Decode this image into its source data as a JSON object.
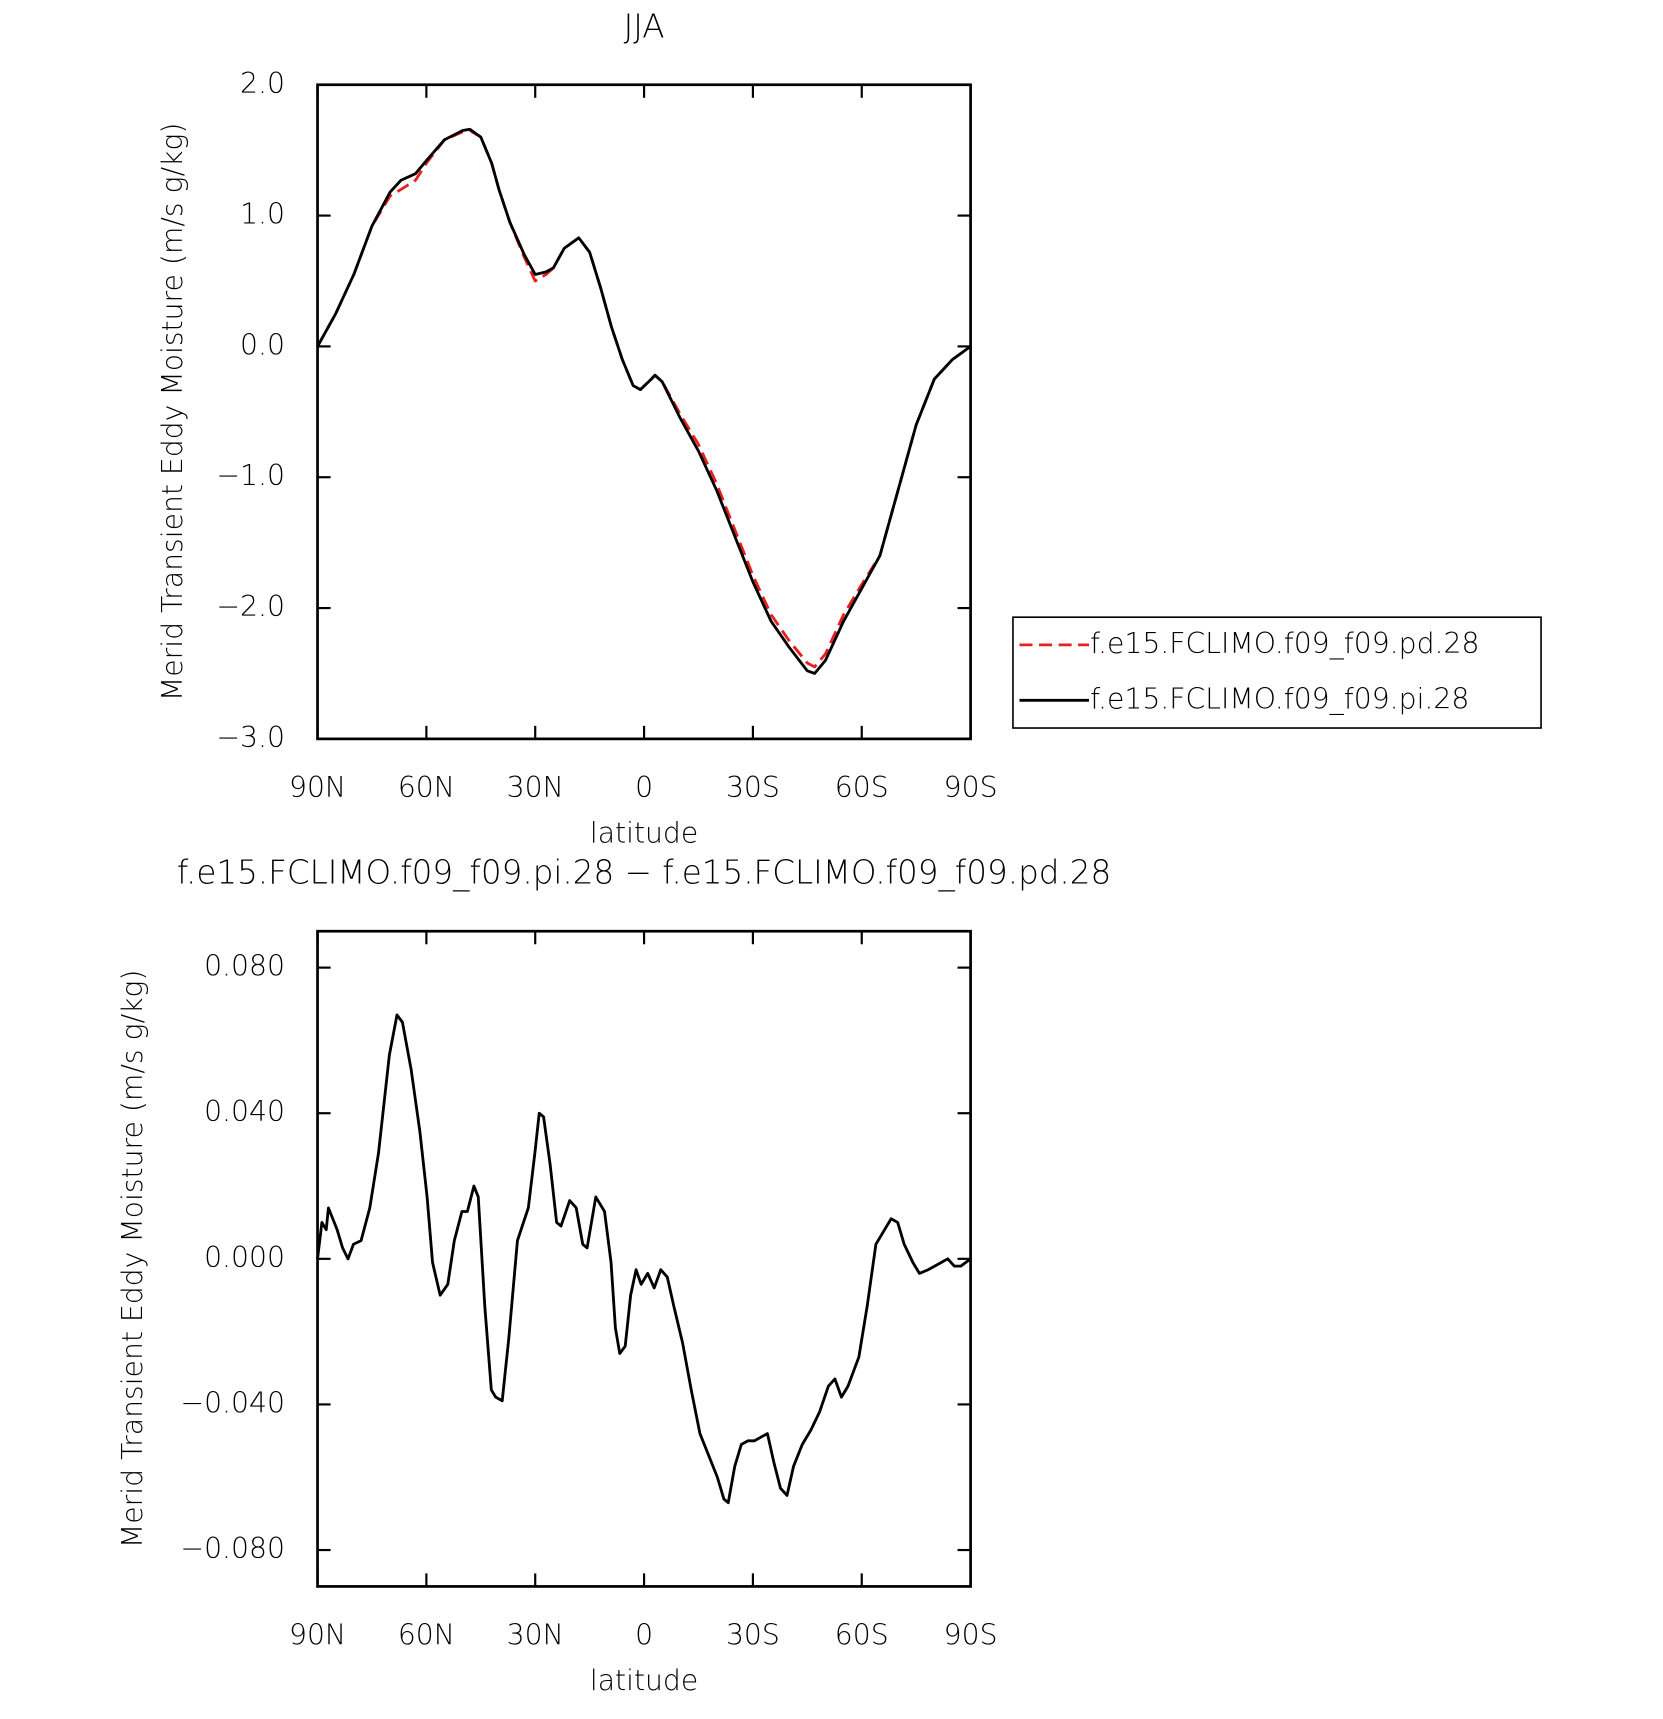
{
  "chart_data": [
    {
      "type": "line",
      "title": "JJA",
      "x_label": "latitude",
      "y_label": "Merid Transient Eddy Moisture (m/s g/kg)",
      "x": [
        90,
        85,
        80,
        75,
        70,
        67,
        63,
        60,
        55,
        50,
        48,
        45,
        42,
        40,
        37,
        33,
        30,
        27,
        25,
        22,
        18,
        15,
        12,
        9,
        6,
        3,
        1,
        -2,
        -3,
        -5,
        -10,
        -15,
        -20,
        -25,
        -30,
        -35,
        -40,
        -45,
        -47,
        -50,
        -55,
        -60,
        -65,
        -70,
        -75,
        -80,
        -85,
        -90
      ],
      "series": [
        {
          "name": "f.e15.FCLIMO.f09_f09.pd.28",
          "color": "#e8201c",
          "dash": true,
          "values": [
            0.0,
            0.25,
            0.55,
            0.92,
            1.15,
            1.2,
            1.27,
            1.4,
            1.58,
            1.64,
            1.65,
            1.6,
            1.4,
            1.2,
            0.95,
            0.68,
            0.5,
            0.55,
            0.6,
            0.75,
            0.83,
            0.72,
            0.45,
            0.15,
            -0.1,
            -0.3,
            -0.33,
            -0.25,
            -0.22,
            -0.27,
            -0.52,
            -0.75,
            -1.05,
            -1.4,
            -1.75,
            -2.05,
            -2.25,
            -2.42,
            -2.45,
            -2.35,
            -2.05,
            -1.82,
            -1.6,
            -1.1,
            -0.6,
            -0.25,
            -0.1,
            0.0
          ]
        },
        {
          "name": "f.e15.FCLIMO.f09_f09.pi.28",
          "color": "#000000",
          "dash": false,
          "values": [
            0.0,
            0.25,
            0.55,
            0.92,
            1.18,
            1.27,
            1.32,
            1.42,
            1.58,
            1.65,
            1.66,
            1.6,
            1.4,
            1.2,
            0.95,
            0.7,
            0.55,
            0.57,
            0.6,
            0.75,
            0.83,
            0.72,
            0.45,
            0.15,
            -0.1,
            -0.3,
            -0.33,
            -0.25,
            -0.22,
            -0.27,
            -0.55,
            -0.8,
            -1.1,
            -1.45,
            -1.8,
            -2.1,
            -2.3,
            -2.48,
            -2.5,
            -2.4,
            -2.1,
            -1.85,
            -1.6,
            -1.1,
            -0.6,
            -0.25,
            -0.1,
            0.0
          ]
        }
      ],
      "xlim": [
        90,
        -90
      ],
      "xticks": [
        {
          "value": 90,
          "label": "90N"
        },
        {
          "value": 60,
          "label": "60N"
        },
        {
          "value": 30,
          "label": "30N"
        },
        0,
        {
          "value": -30,
          "label": "30S"
        },
        {
          "value": -60,
          "label": "60S"
        },
        {
          "value": -90,
          "label": "90S"
        }
      ],
      "ylim": [
        -3,
        2
      ],
      "yticks": [
        {
          "value": -3,
          "label": "−3.0"
        },
        {
          "value": -2,
          "label": "−2.0"
        },
        {
          "value": -1,
          "label": "−1.0"
        },
        {
          "value": 0,
          "label": "0.0"
        },
        {
          "value": 1,
          "label": "1.0"
        },
        {
          "value": 2,
          "label": "2.0"
        }
      ],
      "legend": "right"
    },
    {
      "type": "line",
      "title": "f.e15.FCLIMO.f09_f09.pi.28 − f.e15.FCLIMO.f09_f09.pd.28",
      "x_label": "latitude",
      "y_label": "Merid Transient Eddy Moisture (m/s g/kg)",
      "x": [
        90,
        88.8,
        87.6,
        87.0,
        85.8,
        84.6,
        83.1,
        81.6,
        80.1,
        78.0,
        75.6,
        73.2,
        70.2,
        68.1,
        66.6,
        64.2,
        61.8,
        59.8,
        58.3,
        56.2,
        54.1,
        52.3,
        50.2,
        48.7,
        46.9,
        45.7,
        43.9,
        42.1,
        40.9,
        39.1,
        37.3,
        34.9,
        31.9,
        30.1,
        28.9,
        27.7,
        25.9,
        24.1,
        22.9,
        20.5,
        18.7,
        16.9,
        15.7,
        13.3,
        10.9,
        9.1,
        7.9,
        6.7,
        5.2,
        3.7,
        2.2,
        0.8,
        -1.0,
        -2.8,
        -4.6,
        -6.4,
        -8.2,
        -10.6,
        -13.0,
        -15.4,
        -17.8,
        -20.2,
        -22.0,
        -23.2,
        -25.0,
        -26.8,
        -28.6,
        -30.4,
        -32.2,
        -34.0,
        -35.8,
        -37.6,
        -39.4,
        -41.2,
        -43.6,
        -46.0,
        -48.4,
        -50.8,
        -52.6,
        -54.4,
        -56.2,
        -59.2,
        -61.5,
        -63.9,
        -66.3,
        -68.1,
        -69.9,
        -71.7,
        -74.1,
        -75.9,
        -78.3,
        -80.1,
        -81.9,
        -83.7,
        -85.5,
        -87.3,
        -90
      ],
      "series": [
        {
          "color": "#000000",
          "dash": false,
          "values": [
            0,
            0.01,
            0.008,
            0.014,
            0.011,
            0.008,
            0.003,
            0.0,
            0.004,
            0.005,
            0.014,
            0.029,
            0.056,
            0.067,
            0.065,
            0.052,
            0.035,
            0.017,
            -0.001,
            -0.01,
            -0.007,
            0.005,
            0.013,
            0.013,
            0.02,
            0.017,
            -0.013,
            -0.036,
            -0.038,
            -0.039,
            -0.022,
            0.005,
            0.014,
            0.029,
            0.04,
            0.039,
            0.026,
            0.01,
            0.009,
            0.016,
            0.014,
            0.004,
            0.003,
            0.017,
            0.013,
            -0.001,
            -0.019,
            -0.026,
            -0.024,
            -0.01,
            -0.003,
            -0.007,
            -0.004,
            -0.008,
            -0.003,
            -0.005,
            -0.013,
            -0.023,
            -0.036,
            -0.048,
            -0.054,
            -0.06,
            -0.066,
            -0.067,
            -0.057,
            -0.051,
            -0.05,
            -0.05,
            -0.049,
            -0.048,
            -0.056,
            -0.063,
            -0.065,
            -0.057,
            -0.051,
            -0.047,
            -0.042,
            -0.035,
            -0.033,
            -0.038,
            -0.035,
            -0.027,
            -0.013,
            0.004,
            0.008,
            0.011,
            0.01,
            0.004,
            -0.001,
            -0.004,
            -0.003,
            -0.002,
            -0.001,
            0,
            -0.002,
            -0.002,
            0
          ]
        }
      ],
      "xlim": [
        90,
        -90
      ],
      "xticks": [
        {
          "value": 90,
          "label": "90N"
        },
        {
          "value": 60,
          "label": "60N"
        },
        {
          "value": 30,
          "label": "30N"
        },
        0,
        {
          "value": -30,
          "label": "30S"
        },
        {
          "value": -60,
          "label": "60S"
        },
        {
          "value": -90,
          "label": "90S"
        }
      ],
      "ylim": [
        -0.09,
        0.09
      ],
      "yticks": [
        {
          "value": -0.08,
          "label": "−0.080"
        },
        {
          "value": -0.04,
          "label": "−0.040"
        },
        {
          "value": 0,
          "label": "0.000"
        },
        {
          "value": 0.04,
          "label": "0.040"
        },
        {
          "value": 0.08,
          "label": "0.080"
        }
      ]
    }
  ]
}
